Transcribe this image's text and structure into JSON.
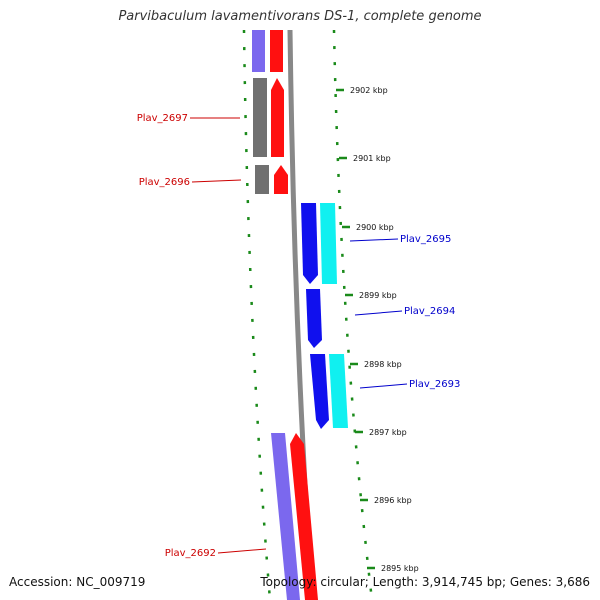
{
  "title": "Parvibaculum lavamentivorans DS-1, complete genome",
  "footer": {
    "accession": "Accession: NC_009719",
    "summary": "Topology: circular; Length: 3,914,745 bp; Genes: 3,686"
  },
  "colors": {
    "forward_cds": "#ff0000",
    "forward_track": "#7b68ee",
    "reverse_cds": "#0000ee",
    "reverse_track": "#00ffff",
    "other": "#666666",
    "backbone": "#888888",
    "ticks": "#006400",
    "label_forward": "#cc0000",
    "label_reverse": "#0000cc"
  },
  "scale_ticks": [
    "2902 kbp",
    "2901 kbp",
    "2900 kbp",
    "2899 kbp",
    "2898 kbp",
    "2897 kbp",
    "2896 kbp",
    "2895 kbp"
  ],
  "gene_labels": [
    {
      "name": "Plav_2697",
      "strand": "forward"
    },
    {
      "name": "Plav_2696",
      "strand": "forward"
    },
    {
      "name": "Plav_2695",
      "strand": "reverse"
    },
    {
      "name": "Plav_2694",
      "strand": "reverse"
    },
    {
      "name": "Plav_2693",
      "strand": "reverse"
    },
    {
      "name": "Plav_2692",
      "strand": "forward"
    }
  ]
}
